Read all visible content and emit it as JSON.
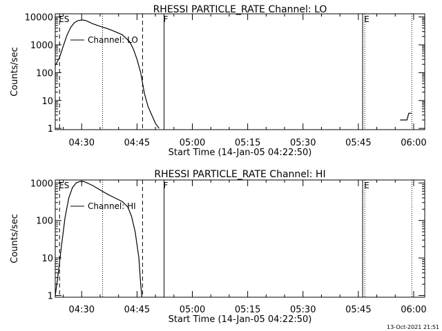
{
  "footer": {
    "timestamp": "13-Oct-2021 21:51"
  },
  "chart_data": [
    {
      "type": "line",
      "title": "RHESSI PARTICLE_RATE Channel: LO",
      "xlabel": "Start Time (14-Jan-05 04:22:50)",
      "ylabel": "Counts/sec",
      "yscale": "log",
      "ylim": [
        0.9,
        13000
      ],
      "xlim": [
        "04:22:50",
        "06:03:00"
      ],
      "xticks": [
        "04:30",
        "04:45",
        "05:00",
        "05:15",
        "05:30",
        "05:45",
        "06:00"
      ],
      "yticks": [
        "1",
        "10",
        "100",
        "1000",
        "10000"
      ],
      "legend": "Channel: LO",
      "markers": [
        {
          "label": "ES",
          "time": "04:24:00",
          "style": "dashed"
        },
        {
          "label": "",
          "time": "04:35:40",
          "style": "dotted"
        },
        {
          "label": "",
          "time": "04:46:30",
          "style": "dashed"
        },
        {
          "label": "F",
          "time": "04:52:20",
          "style": "solid"
        },
        {
          "label": "",
          "time": "05:46:10",
          "style": "solid"
        },
        {
          "label": "E",
          "time": "05:46:45",
          "style": "dotted"
        },
        {
          "label": "",
          "time": "05:59:30",
          "style": "dotted"
        }
      ],
      "series": [
        {
          "segments": [
            [
              [
                "04:22:50",
                180
              ],
              [
                "04:24:00",
                350
              ],
              [
                "04:25:00",
                900
              ],
              [
                "04:26:00",
                2200
              ],
              [
                "04:27:00",
                4200
              ],
              [
                "04:28:00",
                6200
              ],
              [
                "04:29:00",
                7400
              ],
              [
                "04:30:00",
                7800
              ],
              [
                "04:31:00",
                7500
              ],
              [
                "04:32:00",
                6600
              ],
              [
                "04:33:00",
                5700
              ],
              [
                "04:35:00",
                4600
              ],
              [
                "04:37:00",
                3800
              ],
              [
                "04:39:00",
                3000
              ],
              [
                "04:41:00",
                2300
              ],
              [
                "04:43:00",
                1300
              ],
              [
                "04:44:00",
                700
              ],
              [
                "04:45:00",
                300
              ],
              [
                "04:46:00",
                100
              ],
              [
                "04:47:00",
                18
              ],
              [
                "04:48:00",
                6
              ],
              [
                "04:49:00",
                3
              ],
              [
                "04:50:00",
                1.5
              ],
              [
                "04:51:00",
                1
              ]
            ],
            [
              [
                "05:56:20",
                2
              ],
              [
                "05:58:10",
                2
              ],
              [
                "05:58:40",
                3.5
              ],
              [
                "05:59:30",
                3.5
              ]
            ]
          ]
        }
      ]
    },
    {
      "type": "line",
      "title": "RHESSI PARTICLE_RATE Channel: HI",
      "xlabel": "Start Time (14-Jan-05 04:22:50)",
      "ylabel": "Counts/sec",
      "yscale": "log",
      "ylim": [
        0.9,
        1200
      ],
      "xlim": [
        "04:22:50",
        "06:03:00"
      ],
      "xticks": [
        "04:30",
        "04:45",
        "05:00",
        "05:15",
        "05:30",
        "05:45",
        "06:00"
      ],
      "yticks": [
        "1",
        "10",
        "100",
        "1000"
      ],
      "legend": "Channel: HI",
      "markers": [
        {
          "label": "ES",
          "time": "04:24:00",
          "style": "dashed"
        },
        {
          "label": "",
          "time": "04:35:40",
          "style": "dotted"
        },
        {
          "label": "",
          "time": "04:46:30",
          "style": "dashed"
        },
        {
          "label": "F",
          "time": "04:52:20",
          "style": "solid"
        },
        {
          "label": "",
          "time": "05:46:10",
          "style": "solid"
        },
        {
          "label": "E",
          "time": "05:46:45",
          "style": "dotted"
        },
        {
          "label": "",
          "time": "05:59:30",
          "style": "dotted"
        }
      ],
      "series": [
        {
          "segments": [
            [
              [
                "04:22:50",
                1
              ],
              [
                "04:23:30",
                3
              ],
              [
                "04:24:30",
                20
              ],
              [
                "04:25:30",
                120
              ],
              [
                "04:26:30",
                400
              ],
              [
                "04:27:30",
                750
              ],
              [
                "04:28:30",
                1000
              ],
              [
                "04:29:30",
                1100
              ],
              [
                "04:30:30",
                1100
              ],
              [
                "04:31:30",
                1000
              ],
              [
                "04:33:00",
                850
              ],
              [
                "04:35:00",
                650
              ],
              [
                "04:37:00",
                500
              ],
              [
                "04:39:00",
                400
              ],
              [
                "04:41:00",
                320
              ],
              [
                "04:42:30",
                230
              ],
              [
                "04:43:30",
                130
              ],
              [
                "04:44:30",
                50
              ],
              [
                "04:45:30",
                10
              ],
              [
                "04:46:00",
                2
              ],
              [
                "04:46:20",
                0.9
              ]
            ]
          ]
        }
      ]
    }
  ]
}
